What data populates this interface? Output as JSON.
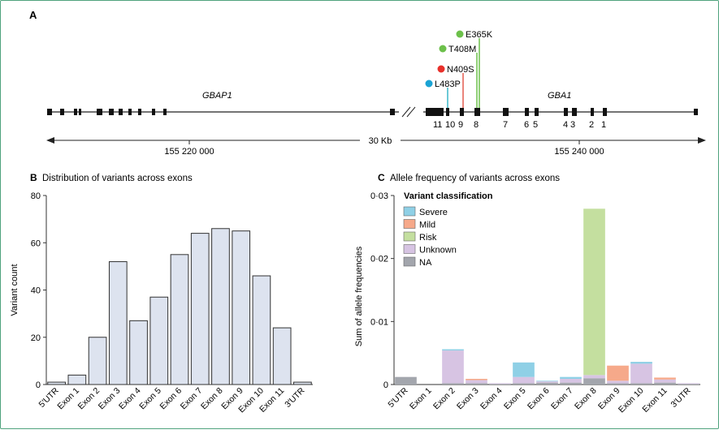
{
  "colors": {
    "frame": "#4fa37d",
    "bar_fill": "#dde3ef",
    "severe": "#8fd0e6",
    "mild": "#f6a98a",
    "risk": "#c4df9f",
    "unknown": "#d7c4e3",
    "na": "#a3a6ad",
    "marker_green": "#6cc04a",
    "marker_red": "#e8302a",
    "marker_blue": "#1aa3d4",
    "line_teal": "#3ab7c9",
    "line_red": "#e25a4f",
    "line_green": "#6cc04a"
  },
  "panel_a": {
    "label": "A",
    "gbap1_label": "GBAP1",
    "gba1_label": "GBA1",
    "scale_text": "30 Kb",
    "coord_left": "155 220 000",
    "coord_right": "155 240 000",
    "exon_numbers": [
      "11",
      "10",
      "9",
      "8",
      "7",
      "6",
      "5",
      "4",
      "3",
      "2",
      "1"
    ],
    "variants": [
      {
        "name": "E365K",
        "color": "green",
        "exon": "8"
      },
      {
        "name": "T408M",
        "color": "green",
        "exon": "8"
      },
      {
        "name": "N409S",
        "color": "red",
        "exon": "9"
      },
      {
        "name": "L483P",
        "color": "blue",
        "exon": "10"
      }
    ]
  },
  "chart_data": [
    {
      "panel": "B",
      "type": "bar",
      "title": "Distribution of variants across exons",
      "ylabel": "Variant count",
      "xlabel": "",
      "ylim": [
        0,
        80
      ],
      "yticks": [
        0,
        20,
        40,
        60,
        80
      ],
      "categories": [
        "5′UTR",
        "Exon 1",
        "Exon 2",
        "Exon 3",
        "Exon 4",
        "Exon 5",
        "Exon 6",
        "Exon 7",
        "Exon 8",
        "Exon 9",
        "Exon 10",
        "Exon 11",
        "3′UTR"
      ],
      "values": [
        1,
        4,
        20,
        52,
        27,
        37,
        55,
        64,
        66,
        65,
        46,
        24,
        1
      ],
      "grid": false
    },
    {
      "panel": "C",
      "type": "bar",
      "stacked": true,
      "title": "Allele frequency of variants across exons",
      "ylabel": "Sum of allele frequencies",
      "xlabel": "",
      "ylim": [
        0,
        0.03
      ],
      "yticks": [
        "0",
        "0·01",
        "0·02",
        "0·03"
      ],
      "legend_title": "Variant classification",
      "legend_position": "top-left",
      "categories": [
        "5′UTR",
        "Exon 1",
        "Exon 2",
        "Exon 3",
        "Exon 4",
        "Exon 5",
        "Exon 6",
        "Exon 7",
        "Exon 8",
        "Exon 9",
        "Exon 10",
        "Exon 11",
        "3′UTR"
      ],
      "series": [
        {
          "name": "NA",
          "values": [
            0.0012,
            0.0,
            0.0002,
            0.0002,
            0.0001,
            0.0002,
            0.0003,
            0.0003,
            0.001,
            0.0002,
            0.0002,
            0.0003,
            0.0001
          ]
        },
        {
          "name": "Unknown",
          "values": [
            0.0,
            0.0,
            0.0052,
            0.0005,
            0.0001,
            0.001,
            0.0002,
            0.0006,
            0.0005,
            0.0004,
            0.0031,
            0.0005,
            0.0001
          ]
        },
        {
          "name": "Risk",
          "values": [
            0.0,
            0.0,
            0.0,
            0.0,
            0.0,
            0.0,
            0.0,
            0.0,
            0.0264,
            0.0,
            0.0,
            0.0,
            0.0
          ]
        },
        {
          "name": "Mild",
          "values": [
            0.0,
            0.0,
            0.0,
            0.0002,
            0.0,
            0.0,
            0.0,
            0.0,
            0.0,
            0.0024,
            0.0,
            0.0003,
            0.0
          ]
        },
        {
          "name": "Severe",
          "values": [
            0.0,
            0.0,
            0.0002,
            0.0,
            0.0,
            0.0023,
            0.0001,
            0.0003,
            0.0,
            0.0,
            0.0003,
            0.0,
            0.0
          ]
        }
      ],
      "legend_order": [
        "Severe",
        "Mild",
        "Risk",
        "Unknown",
        "NA"
      ]
    }
  ]
}
